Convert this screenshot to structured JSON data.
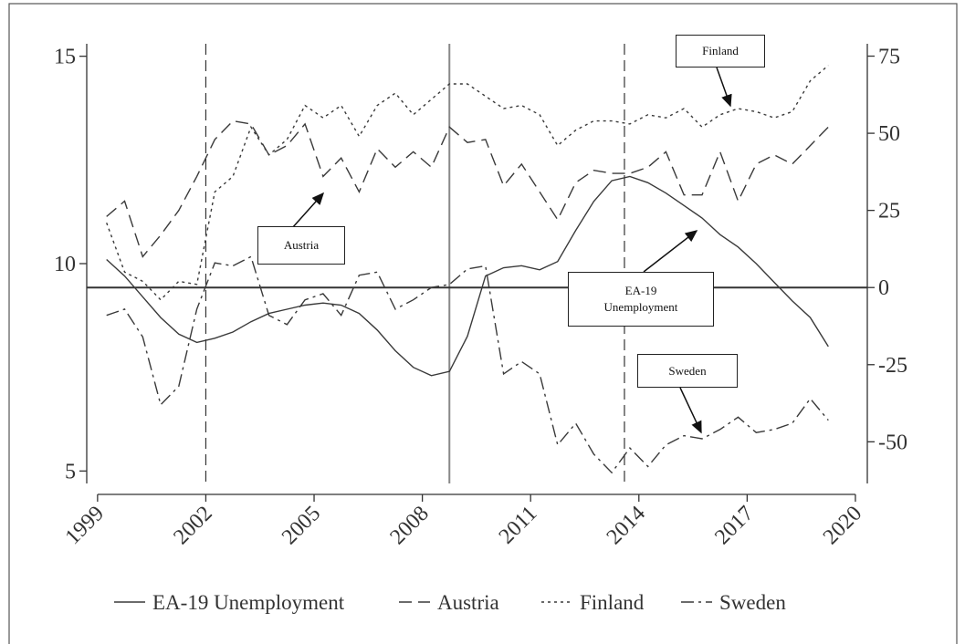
{
  "chart_data": {
    "type": "line",
    "x": [
      1999.25,
      1999.75,
      2000.25,
      2000.75,
      2001.25,
      2001.75,
      2002.25,
      2002.75,
      2003.25,
      2003.75,
      2004.25,
      2004.75,
      2005.25,
      2005.75,
      2006.25,
      2006.75,
      2007.25,
      2007.75,
      2008.25,
      2008.75,
      2009.25,
      2009.75,
      2010.25,
      2010.75,
      2011.25,
      2011.75,
      2012.25,
      2012.75,
      2013.25,
      2013.75,
      2014.25,
      2014.75,
      2015.25,
      2015.75,
      2016.25,
      2016.75,
      2017.25,
      2017.75,
      2018.25,
      2018.75,
      2019.25
    ],
    "series": [
      {
        "name": "EA-19 Unemployment",
        "color": "#3a3a3a",
        "dash": "solid",
        "axis": "y",
        "values": [
          10.1,
          9.7,
          9.2,
          8.7,
          8.3,
          8.1,
          8.2,
          8.35,
          8.6,
          8.8,
          8.9,
          9.0,
          9.05,
          9.0,
          8.8,
          8.4,
          7.9,
          7.5,
          7.3,
          7.4,
          8.25,
          9.7,
          9.9,
          9.95,
          9.85,
          10.05,
          10.8,
          11.5,
          12.0,
          12.1,
          11.95,
          11.7,
          11.4,
          11.1,
          10.7,
          10.4,
          10.0,
          9.55,
          9.1,
          8.7,
          8.0
        ]
      },
      {
        "name": "Austria",
        "color": "#3a3a3a",
        "dash": "dashed",
        "axis": "y2",
        "values": [
          23,
          28,
          10,
          17,
          25,
          36,
          48,
          54,
          53,
          43,
          46,
          53,
          36,
          42,
          31,
          45,
          39,
          44,
          39,
          52,
          47,
          48,
          33,
          40,
          31,
          22,
          34,
          38,
          37,
          37,
          39,
          44,
          30,
          30,
          44,
          28,
          40,
          43,
          40,
          46,
          52
        ]
      },
      {
        "name": "Finland",
        "color": "#3a3a3a",
        "dash": "dotted",
        "axis": "y2",
        "values": [
          21,
          5,
          2,
          -4,
          2,
          1,
          31,
          36,
          52,
          43,
          48,
          59,
          55,
          59,
          49,
          59,
          63,
          56,
          61,
          66,
          66,
          62,
          58,
          59,
          56,
          46,
          51,
          54,
          54,
          53,
          56,
          55,
          58,
          52,
          56,
          58,
          57,
          55,
          57,
          67,
          72
        ]
      },
      {
        "name": "Sweden",
        "color": "#3a3a3a",
        "dash": "dashdot",
        "axis": "y2",
        "values": [
          -9,
          -7,
          -16,
          -38,
          -32,
          -7,
          8,
          7,
          10,
          -9,
          -12,
          -4,
          -2,
          -9,
          4,
          5,
          -7,
          -4,
          0,
          1,
          6,
          7,
          -28,
          -24,
          -28,
          -51,
          -44,
          -54,
          -60,
          -52,
          -58,
          -51,
          -48,
          -49,
          -46,
          -42,
          -47,
          -46,
          -44,
          -36,
          -43
        ]
      }
    ],
    "xlim": [
      1998.7,
      2020.33
    ],
    "xticks": [
      1999,
      2002,
      2005,
      2008,
      2011,
      2014,
      2017,
      2020
    ],
    "ylim": [
      4.7,
      15.3
    ],
    "yticks": [
      5,
      10,
      15
    ],
    "y2lim": [
      -63.5,
      79
    ],
    "y2ticks": [
      -50,
      -25,
      0,
      25,
      50,
      75
    ],
    "vlines": [
      {
        "x": 2002,
        "dash": true
      },
      {
        "x": 2008.75,
        "dash": false
      },
      {
        "x": 2013.6,
        "dash": true
      }
    ],
    "hline_y2": 0,
    "annotations": [
      "Finland",
      "Austria",
      "EA-19 Unemployment",
      "Sweden"
    ],
    "legend": "bottom"
  }
}
